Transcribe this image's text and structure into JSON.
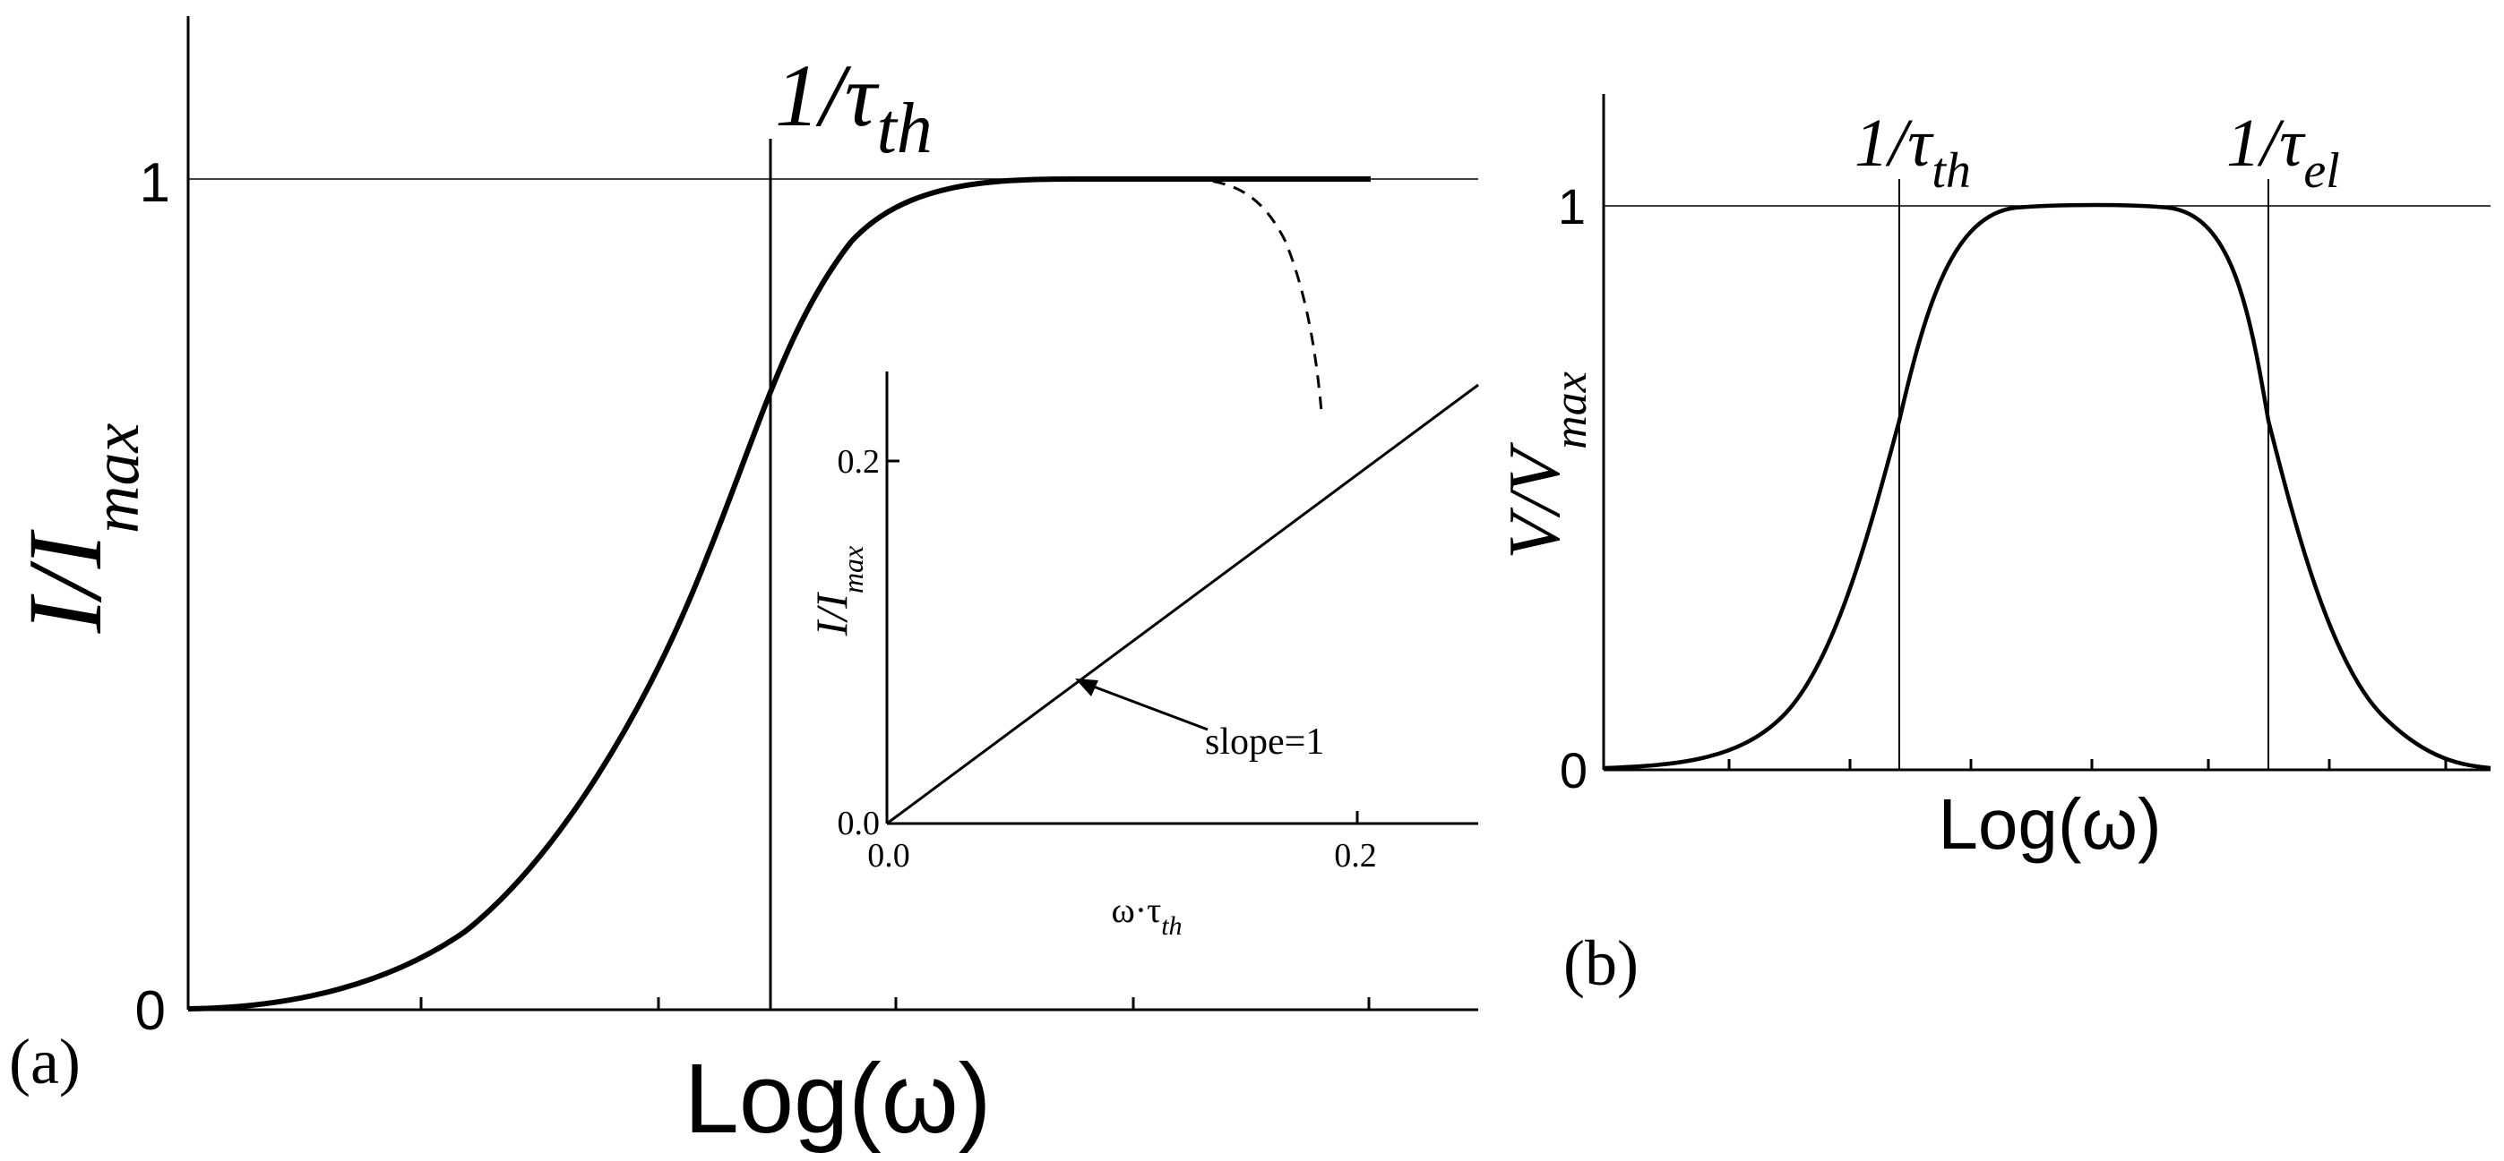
{
  "colors": {
    "ink": "#000000",
    "background": "#ffffff"
  },
  "chart_data": [
    {
      "panel": "(a)",
      "type": "line",
      "xlabel": "Log(ω)",
      "ylabel": {
        "main": "I/I",
        "sub": "max"
      },
      "yticks": [
        "0",
        "1"
      ],
      "ylim": [
        0,
        1.2
      ],
      "reference_line": {
        "label_main": "1/τ",
        "label_sub": "th",
        "log_omega_tau": 0
      },
      "series": [
        {
          "style": "solid",
          "x_log_omega_tau": [
            -3,
            -2.5,
            -2,
            -1.5,
            -1,
            -0.5,
            0,
            0.5,
            1,
            1.5,
            2,
            2.5,
            3
          ],
          "y": [
            0.001,
            0.01,
            0.05,
            0.13,
            0.28,
            0.52,
            0.72,
            0.88,
            0.96,
            0.99,
            1.0,
            1.0,
            1.0
          ]
        },
        {
          "style": "dashed",
          "x_log_omega_tau": [
            2.2,
            2.5,
            2.7,
            2.9
          ],
          "y": [
            1.0,
            0.98,
            0.9,
            0.72
          ]
        }
      ]
    },
    {
      "panel": "inset",
      "type": "line",
      "xlabel": {
        "main": "ω·τ",
        "sub": "th"
      },
      "ylabel": {
        "main": "I/I",
        "sub": "max"
      },
      "xticks": [
        "0.0",
        "0.2"
      ],
      "yticks": [
        "0.0",
        "0.2"
      ],
      "xlim": [
        0,
        0.25
      ],
      "ylim": [
        0,
        0.25
      ],
      "series": [
        {
          "x": [
            0,
            0.25
          ],
          "y": [
            0,
            0.25
          ]
        }
      ],
      "annotation": "slope=1"
    },
    {
      "panel": "(b)",
      "type": "line",
      "xlabel": "Log(ω)",
      "ylabel": {
        "main": "V/V",
        "sub": "max"
      },
      "yticks": [
        "0",
        "1"
      ],
      "ylim": [
        0,
        1.2
      ],
      "reference_lines": [
        {
          "label_main": "1/τ",
          "label_sub": "th",
          "log_omega": -1.5
        },
        {
          "label_main": "1/τ",
          "label_sub": "el",
          "log_omega": 1.5
        }
      ],
      "series": [
        {
          "x_log_omega": [
            -4,
            -3.5,
            -3,
            -2.5,
            -2,
            -1.5,
            -1,
            -0.5,
            0,
            0.5,
            1,
            1.5,
            2,
            2.5,
            3,
            3.5,
            4
          ],
          "y": [
            0.01,
            0.03,
            0.09,
            0.24,
            0.5,
            0.72,
            0.9,
            0.98,
            1.0,
            0.98,
            0.9,
            0.72,
            0.5,
            0.24,
            0.09,
            0.03,
            0.01
          ]
        }
      ]
    }
  ]
}
